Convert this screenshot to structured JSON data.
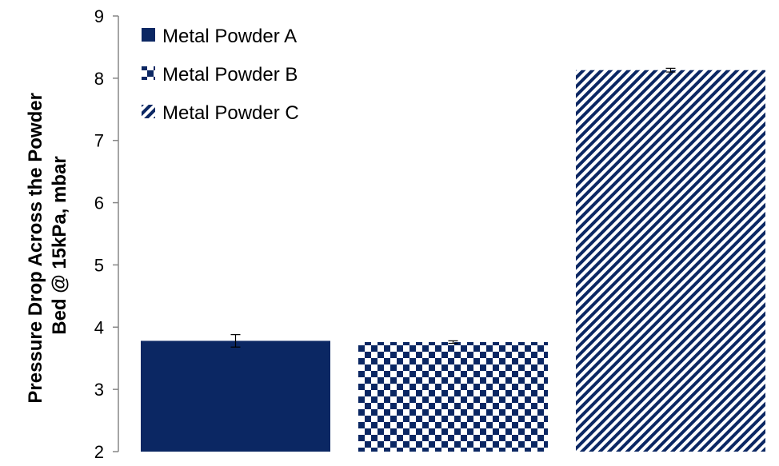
{
  "chart_data": {
    "type": "bar",
    "title": "",
    "ylabel_lines": [
      "Pressure Drop Across the Powder",
      "Bed @ 15kPa, mbar"
    ],
    "xlabel": "",
    "ylim": [
      2,
      9
    ],
    "yticks": [
      "2",
      "3",
      "4",
      "5",
      "6",
      "7",
      "8",
      "9"
    ],
    "grid": false,
    "legend_position": "top-left",
    "series": [
      {
        "name": "Metal Powder A",
        "value": 3.78,
        "error": 0.1,
        "pattern": "solid"
      },
      {
        "name": "Metal Powder B",
        "value": 3.76,
        "error": 0.02,
        "pattern": "checker"
      },
      {
        "name": "Metal Powder C",
        "value": 8.13,
        "error": 0.03,
        "pattern": "diagonal"
      }
    ],
    "colors": {
      "bar": "#0b2763",
      "background": "#ffffff",
      "axis": "#878787"
    }
  }
}
